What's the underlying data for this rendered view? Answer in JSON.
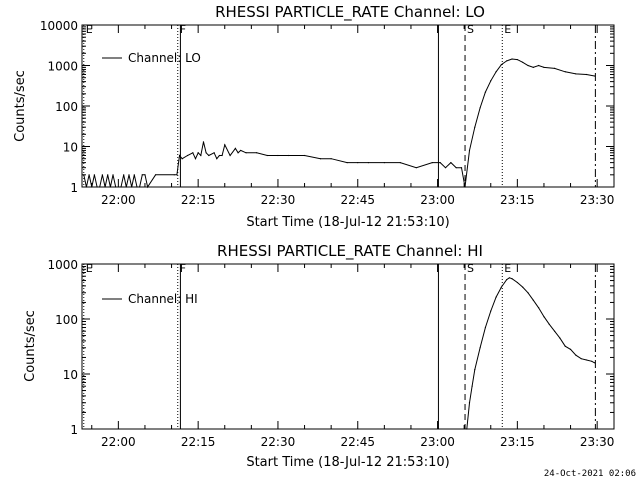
{
  "footer_timestamp": "24-Oct-2021 02:06",
  "chart_data": [
    {
      "type": "line",
      "title": "RHESSI PARTICLE_RATE Channel: LO",
      "xlabel": "Start Time (18-Jul-12 21:53:10)",
      "ylabel": "Counts/sec",
      "yscale": "log",
      "ylim": [
        1,
        10000
      ],
      "xlim": [
        "21:53:10",
        "23:33:10"
      ],
      "x_ticks": [
        "22:00",
        "22:15",
        "22:30",
        "22:45",
        "23:00",
        "23:15",
        "23:30"
      ],
      "y_ticks": [
        "1",
        "10",
        "100",
        "1000",
        "10000"
      ],
      "legend": {
        "position": "top-left",
        "label": "Channel: LO"
      },
      "flag_markers": [
        {
          "label": "E",
          "time": "21:53:30",
          "style": "dotted"
        },
        {
          "label": "F",
          "time": "22:11:10",
          "style": "dotted"
        },
        {
          "label": "",
          "time": "22:11:40",
          "style": "solid"
        },
        {
          "label": "",
          "time": "23:00:10",
          "style": "solid"
        },
        {
          "label": "S",
          "time": "23:05:10",
          "style": "dashed"
        },
        {
          "label": "E",
          "time": "23:12:10",
          "style": "dotted"
        },
        {
          "label": "",
          "time": "23:29:40",
          "style": "dashdot"
        }
      ],
      "series": [
        {
          "name": "Channel: LO",
          "x": [
            "21:53:30",
            "21:54:00",
            "21:54:30",
            "21:55:00",
            "21:55:30",
            "21:56:00",
            "21:56:30",
            "21:57:00",
            "21:57:30",
            "21:58:00",
            "21:58:30",
            "21:59:00",
            "21:59:30",
            "22:00:30",
            "22:01:00",
            "22:01:30",
            "22:02:00",
            "22:02:30",
            "22:03:00",
            "22:03:30",
            "22:04:00",
            "22:04:30",
            "22:05:00",
            "22:05:30",
            "22:07:00",
            "22:10:30",
            "22:11:00",
            "22:11:30",
            "22:12:00",
            "22:13:00",
            "22:14:00",
            "22:14:30",
            "22:15:00",
            "22:15:30",
            "22:16:00",
            "22:16:30",
            "22:17:00",
            "22:18:00",
            "22:18:30",
            "22:19:00",
            "22:19:30",
            "22:20:00",
            "22:21:00",
            "22:22:00",
            "22:22:30",
            "22:23:00",
            "22:24:00",
            "22:26:00",
            "22:28:00",
            "22:30:00",
            "22:32:00",
            "22:35:00",
            "22:38:00",
            "22:40:00",
            "22:43:00",
            "22:45:00",
            "22:47:00",
            "22:50:00",
            "22:53:00",
            "22:56:00",
            "22:59:00",
            "23:00:30",
            "23:01:30",
            "23:02:30",
            "23:03:30",
            "23:04:30",
            "23:05:10",
            "23:06:00",
            "23:07:00",
            "23:08:00",
            "23:09:00",
            "23:10:00",
            "23:11:00",
            "23:12:00",
            "23:13:00",
            "23:14:00",
            "23:15:00",
            "23:16:00",
            "23:17:00",
            "23:18:00",
            "23:19:00",
            "23:20:00",
            "23:22:00",
            "23:24:00",
            "23:26:00",
            "23:28:00",
            "23:29:30"
          ],
          "values": [
            2,
            1,
            2,
            1,
            2,
            1,
            1,
            2,
            1,
            2,
            1,
            2,
            1,
            1,
            2,
            1,
            2,
            1,
            2,
            1,
            1,
            2,
            2,
            1,
            2,
            2,
            2,
            6,
            5,
            6,
            7,
            5,
            7,
            6,
            13,
            7,
            6,
            7,
            5,
            6,
            6,
            11,
            6,
            9,
            7,
            8,
            7,
            7,
            6,
            6,
            6,
            6,
            5,
            5,
            4,
            4,
            4,
            4,
            4,
            3,
            4,
            4,
            3,
            4,
            3,
            3,
            1,
            8,
            30,
            90,
            220,
            420,
            700,
            1050,
            1300,
            1450,
            1400,
            1200,
            1000,
            900,
            1000,
            900,
            850,
            700,
            620,
            600,
            550
          ]
        }
      ]
    },
    {
      "type": "line",
      "title": "RHESSI PARTICLE_RATE Channel: HI",
      "xlabel": "Start Time (18-Jul-12 21:53:10)",
      "ylabel": "Counts/sec",
      "yscale": "log",
      "ylim": [
        1,
        1000
      ],
      "xlim": [
        "21:53:10",
        "23:33:10"
      ],
      "x_ticks": [
        "22:00",
        "22:15",
        "22:30",
        "22:45",
        "23:00",
        "23:15",
        "23:30"
      ],
      "y_ticks": [
        "1",
        "10",
        "100",
        "1000"
      ],
      "legend": {
        "position": "top-left",
        "label": "Channel: HI"
      },
      "flag_markers": [
        {
          "label": "E",
          "time": "21:53:30",
          "style": "dotted"
        },
        {
          "label": "F",
          "time": "22:11:10",
          "style": "dotted"
        },
        {
          "label": "",
          "time": "22:11:40",
          "style": "solid"
        },
        {
          "label": "",
          "time": "23:00:10",
          "style": "solid"
        },
        {
          "label": "S",
          "time": "23:05:10",
          "style": "dashed"
        },
        {
          "label": "E",
          "time": "23:12:10",
          "style": "dotted"
        },
        {
          "label": "",
          "time": "23:29:40",
          "style": "dashdot"
        }
      ],
      "series": [
        {
          "name": "Channel: HI",
          "x": [
            "23:05:30",
            "23:06:00",
            "23:06:30",
            "23:07:00",
            "23:08:00",
            "23:09:00",
            "23:10:00",
            "23:11:00",
            "23:12:00",
            "23:13:00",
            "23:13:30",
            "23:14:00",
            "23:15:00",
            "23:16:00",
            "23:17:00",
            "23:18:00",
            "23:19:00",
            "23:20:00",
            "23:21:00",
            "23:22:00",
            "23:23:00",
            "23:24:00",
            "23:25:00",
            "23:26:00",
            "23:27:00",
            "23:28:00",
            "23:29:00",
            "23:29:30"
          ],
          "values": [
            1,
            3,
            6,
            12,
            30,
            70,
            140,
            250,
            380,
            520,
            560,
            540,
            460,
            380,
            300,
            220,
            160,
            110,
            80,
            60,
            45,
            32,
            28,
            22,
            19,
            18,
            17,
            16
          ]
        }
      ]
    }
  ]
}
